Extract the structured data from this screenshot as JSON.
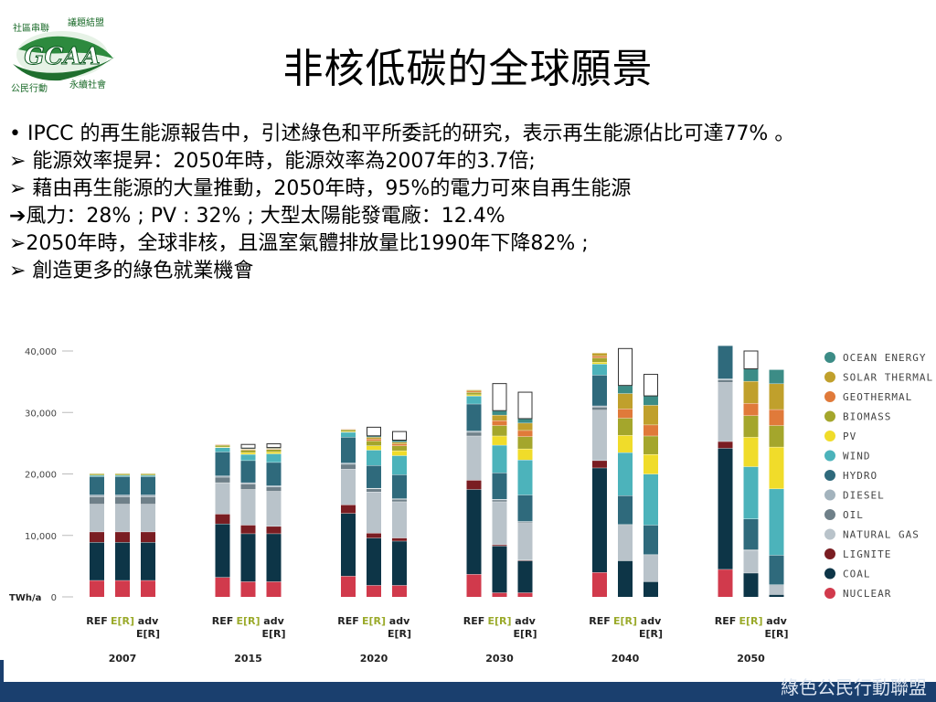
{
  "slide": {
    "title": "非核低碳的全球願景",
    "logo_text": {
      "top_left": "社區串聯",
      "top_right": "議題結盟",
      "main": "GCAA",
      "bottom_left": "公民行動",
      "bottom_right": "永續社會"
    },
    "lines": [
      "• IPCC 的再生能源報告中，引述綠色和平所委託的研究，表示再生能源佔比可達77% 。",
      "➢ 能源效率提昇：2050年時，能源效率為2007年的3.7倍;",
      "➢ 藉由再生能源的大量推動，2050年時，95%的電力可來自再生能源",
      "➔風力：28% ; PV : 32% ; 大型太陽能發電廠：12.4%",
      "➢2050年時，全球非核，且溫室氣體排放量比1990年下降82% ;",
      "➢ 創造更多的綠色就業機會"
    ],
    "footer_text": "綠色公民行動聯盟"
  },
  "chart_data": {
    "type": "bar",
    "stacked": true,
    "unit_label": "TWh/a",
    "ylim": [
      0,
      40000
    ],
    "y_ticks": [
      "0",
      "10,000",
      "20,000",
      "30,000",
      "40,000"
    ],
    "legend_position": "right",
    "years": [
      "2007",
      "2015",
      "2020",
      "2030",
      "2040",
      "2050"
    ],
    "scenarios": [
      "REF",
      "E[R]",
      "adv E[R]"
    ],
    "scenario_colors": {
      "REF": "#222222",
      "E[R]": "#9aaa2a",
      "adv E[R]": "#222222"
    },
    "series": [
      {
        "name": "NUCLEAR",
        "color": "#d13a4c"
      },
      {
        "name": "COAL",
        "color": "#0d3547"
      },
      {
        "name": "LIGNITE",
        "color": "#7a1d22"
      },
      {
        "name": "NATURAL GAS",
        "color": "#b9c3ca"
      },
      {
        "name": "OIL",
        "color": "#6f8089"
      },
      {
        "name": "DIESEL",
        "color": "#a3b3bd"
      },
      {
        "name": "HYDRO",
        "color": "#2f6a7c"
      },
      {
        "name": "WIND",
        "color": "#4cb3bb"
      },
      {
        "name": "PV",
        "color": "#f0dc2a"
      },
      {
        "name": "BIOMASS",
        "color": "#a4a62c"
      },
      {
        "name": "GEOTHERMAL",
        "color": "#e07a3a"
      },
      {
        "name": "SOLAR THERMAL",
        "color": "#c0a02c"
      },
      {
        "name": "OCEAN ENERGY",
        "color": "#3c8c86"
      }
    ],
    "groups": [
      {
        "year": "2007",
        "bars": [
          {
            "scenario": "REF",
            "values": [
              2700,
              6200,
              1700,
              4500,
              1200,
              300,
              3000,
              200,
              20,
              250,
              60,
              0,
              0
            ],
            "extra": 0
          },
          {
            "scenario": "E[R]",
            "values": [
              2700,
              6200,
              1700,
              4500,
              1200,
              300,
              3000,
              200,
              20,
              250,
              60,
              0,
              0
            ],
            "extra": 0
          },
          {
            "scenario": "adv E[R]",
            "values": [
              2700,
              6200,
              1700,
              4500,
              1200,
              300,
              3000,
              200,
              20,
              250,
              60,
              0,
              0
            ],
            "extra": 0
          }
        ]
      },
      {
        "year": "2015",
        "bars": [
          {
            "scenario": "REF",
            "values": [
              3200,
              8700,
              1600,
              5100,
              900,
              200,
              3900,
              700,
              100,
              300,
              100,
              0,
              0
            ],
            "extra": 0
          },
          {
            "scenario": "E[R]",
            "values": [
              2500,
              7800,
              1400,
              5800,
              900,
              200,
              3600,
              1000,
              300,
              400,
              100,
              100,
              100
            ],
            "extra": 600
          },
          {
            "scenario": "adv E[R]",
            "values": [
              2500,
              7800,
              1200,
              5700,
              700,
              200,
              3800,
              1400,
              300,
              400,
              100,
              100,
              100
            ],
            "extra": 600
          }
        ]
      },
      {
        "year": "2020",
        "bars": [
          {
            "scenario": "REF",
            "values": [
              3400,
              10200,
              1400,
              5800,
              800,
              200,
              4200,
              800,
              100,
              300,
              100,
              0,
              0
            ],
            "extra": 0
          },
          {
            "scenario": "E[R]",
            "values": [
              1900,
              7700,
              800,
              6700,
              500,
              100,
              3700,
              2500,
              700,
              800,
              300,
              300,
              200
            ],
            "extra": 1400
          },
          {
            "scenario": "adv E[R]",
            "values": [
              1900,
              7200,
              500,
              5900,
              400,
              100,
              3900,
              3100,
              800,
              800,
              300,
              300,
              300
            ],
            "extra": 1400
          }
        ]
      },
      {
        "year": "2030",
        "bars": [
          {
            "scenario": "REF",
            "values": [
              3700,
              13800,
              1500,
              7200,
              600,
              200,
              4400,
              1300,
              200,
              400,
              200,
              200,
              0
            ],
            "extra": 0
          },
          {
            "scenario": "E[R]",
            "values": [
              700,
              7600,
              200,
              7000,
              300,
              100,
              4300,
              4500,
              1500,
              1700,
              800,
              900,
              700
            ],
            "extra": 4400
          },
          {
            "scenario": "adv E[R]",
            "values": [
              700,
              5200,
              100,
              6000,
              200,
              100,
              4300,
              5700,
              1800,
              2000,
              1000,
              1200,
              700
            ],
            "extra": 4300
          }
        ]
      },
      {
        "year": "2040",
        "bars": [
          {
            "scenario": "REF",
            "values": [
              4000,
              17000,
              1200,
              8200,
              500,
              200,
              5000,
              1800,
              300,
              700,
              300,
              500,
              0
            ],
            "extra": 0
          },
          {
            "scenario": "E[R]",
            "values": [
              0,
              5900,
              0,
              5800,
              100,
              0,
              4700,
              7000,
              2800,
              2800,
              1500,
              2500,
              1300
            ],
            "extra": 6000
          },
          {
            "scenario": "adv E[R]",
            "values": [
              0,
              2500,
              0,
              4300,
              100,
              0,
              4800,
              8300,
              3200,
              3000,
              1800,
              3200,
              1500
            ],
            "extra": 3500
          }
        ]
      },
      {
        "year": "2050",
        "bars": [
          {
            "scenario": "REF",
            "values": [
              4500,
              19700,
              1100,
              9600,
              400,
              200,
              5700,
              0,
              0,
              0,
              0,
              0,
              0
            ],
            "extra": 0
          },
          {
            "scenario": "E[R]",
            "values": [
              0,
              3900,
              0,
              3700,
              100,
              0,
              5000,
              8500,
              4800,
              3500,
              2000,
              3600,
              2000
            ],
            "extra": 2900
          },
          {
            "scenario": "adv E[R]",
            "values": [
              0,
              400,
              0,
              1600,
              0,
              0,
              4800,
              10800,
              6800,
              3500,
              2600,
              4200,
              2300
            ],
            "extra": 0
          }
        ]
      }
    ]
  }
}
